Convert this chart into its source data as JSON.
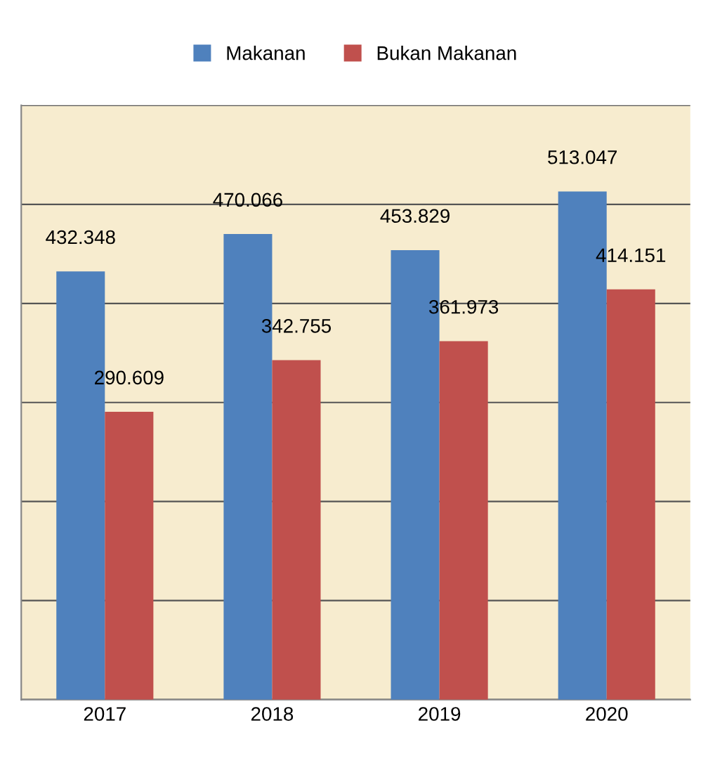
{
  "chart_data": {
    "type": "bar",
    "categories": [
      "2017",
      "2018",
      "2019",
      "2020"
    ],
    "series": [
      {
        "name": "Makanan",
        "color": "#4f81bd",
        "values": [
          432.348,
          470.066,
          453.829,
          513.047
        ]
      },
      {
        "name": "Bukan Makanan",
        "color": "#c0504d",
        "values": [
          290.609,
          342.755,
          361.973,
          414.151
        ]
      }
    ],
    "ylim": [
      0,
      600
    ],
    "yticks": [
      {
        "value": 0,
        "label": null
      },
      {
        "value": 100,
        "label": null
      },
      {
        "value": 200,
        "label": null
      },
      {
        "value": 300,
        "label": null
      },
      {
        "value": 400,
        "label": null
      },
      {
        "value": 500,
        "label": null
      },
      {
        "value": 600,
        "label": null
      }
    ],
    "tick_labels": "x",
    "grid": "y",
    "legend": "top",
    "data_labels": true
  }
}
